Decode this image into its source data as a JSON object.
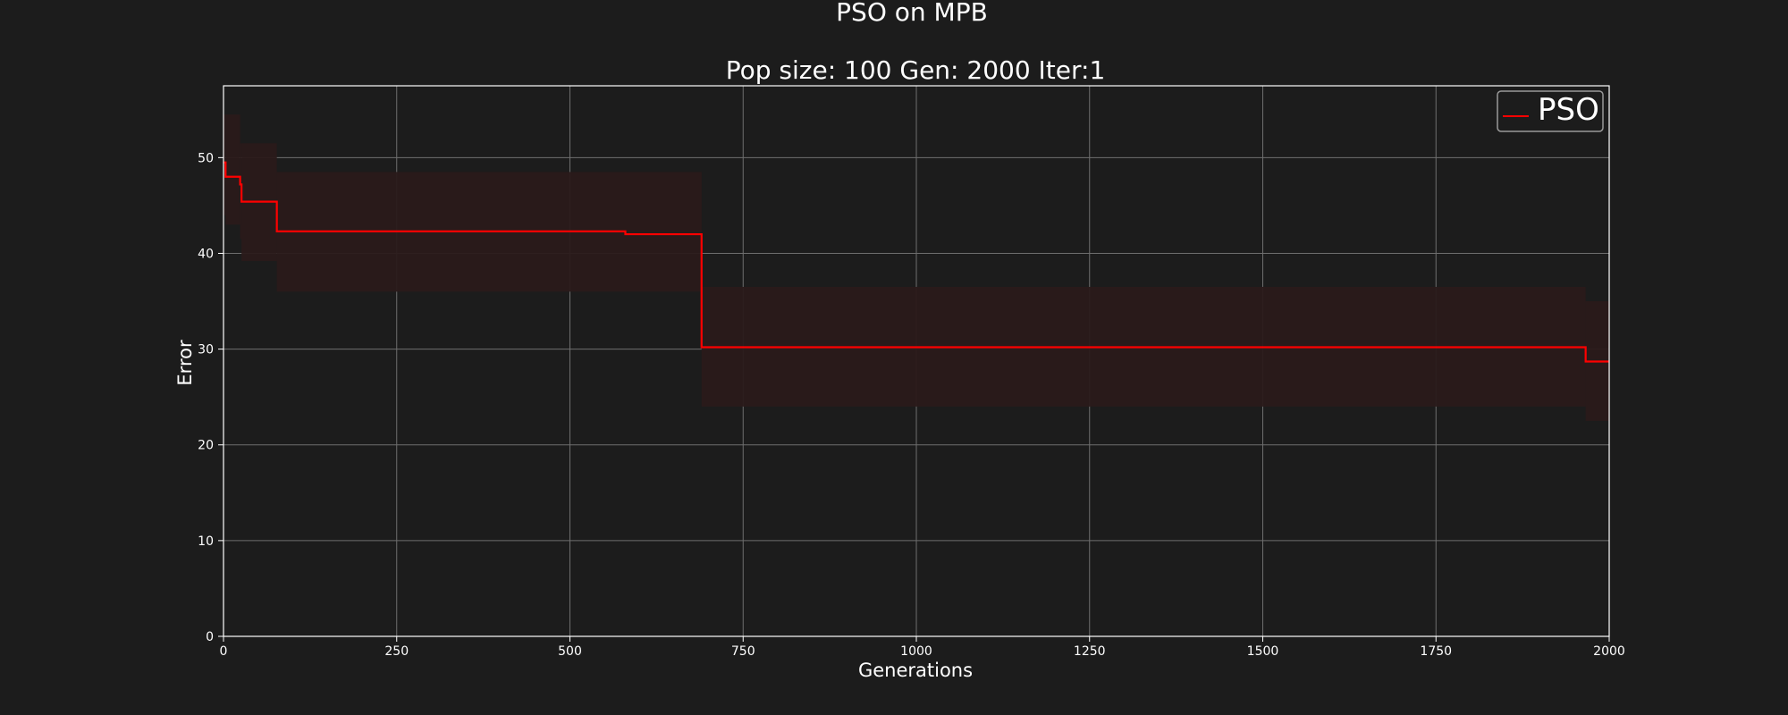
{
  "chart_data": {
    "type": "line",
    "title": "PSO on MPB",
    "subtitle": "Pop size: 100  Gen: 2000  Iter:1",
    "xlabel": "Generations",
    "ylabel": "Error",
    "xlim": [
      0,
      2000
    ],
    "ylim": [
      0,
      57.5
    ],
    "xticks": [
      0,
      250,
      500,
      750,
      1000,
      1250,
      1500,
      1750,
      2000
    ],
    "yticks": [
      0,
      10,
      20,
      30,
      40,
      50
    ],
    "grid": true,
    "legend_position": "top-right",
    "series": [
      {
        "name": "PSO",
        "color": "#ff0000",
        "band_color": "#2a1a1a",
        "steps": [
          {
            "x": 0,
            "y": 49.5,
            "lo": 44,
            "hi": 54.5
          },
          {
            "x": 3,
            "y": 48.0,
            "lo": 43,
            "hi": 54.5
          },
          {
            "x": 22,
            "y": 48.0,
            "lo": 43,
            "hi": 54.5
          },
          {
            "x": 24,
            "y": 47.2,
            "lo": 41.5,
            "hi": 51.5
          },
          {
            "x": 26,
            "y": 45.4,
            "lo": 39.2,
            "hi": 51.5
          },
          {
            "x": 77,
            "y": 42.3,
            "lo": 36,
            "hi": 48.5
          },
          {
            "x": 580,
            "y": 42.0,
            "lo": 36,
            "hi": 48.5
          },
          {
            "x": 690,
            "y": 30.2,
            "lo": 24,
            "hi": 36.5
          },
          {
            "x": 1966,
            "y": 28.7,
            "lo": 22.5,
            "hi": 35
          },
          {
            "x": 2000,
            "y": 28.7,
            "lo": 22.5,
            "hi": 35
          }
        ]
      }
    ]
  }
}
